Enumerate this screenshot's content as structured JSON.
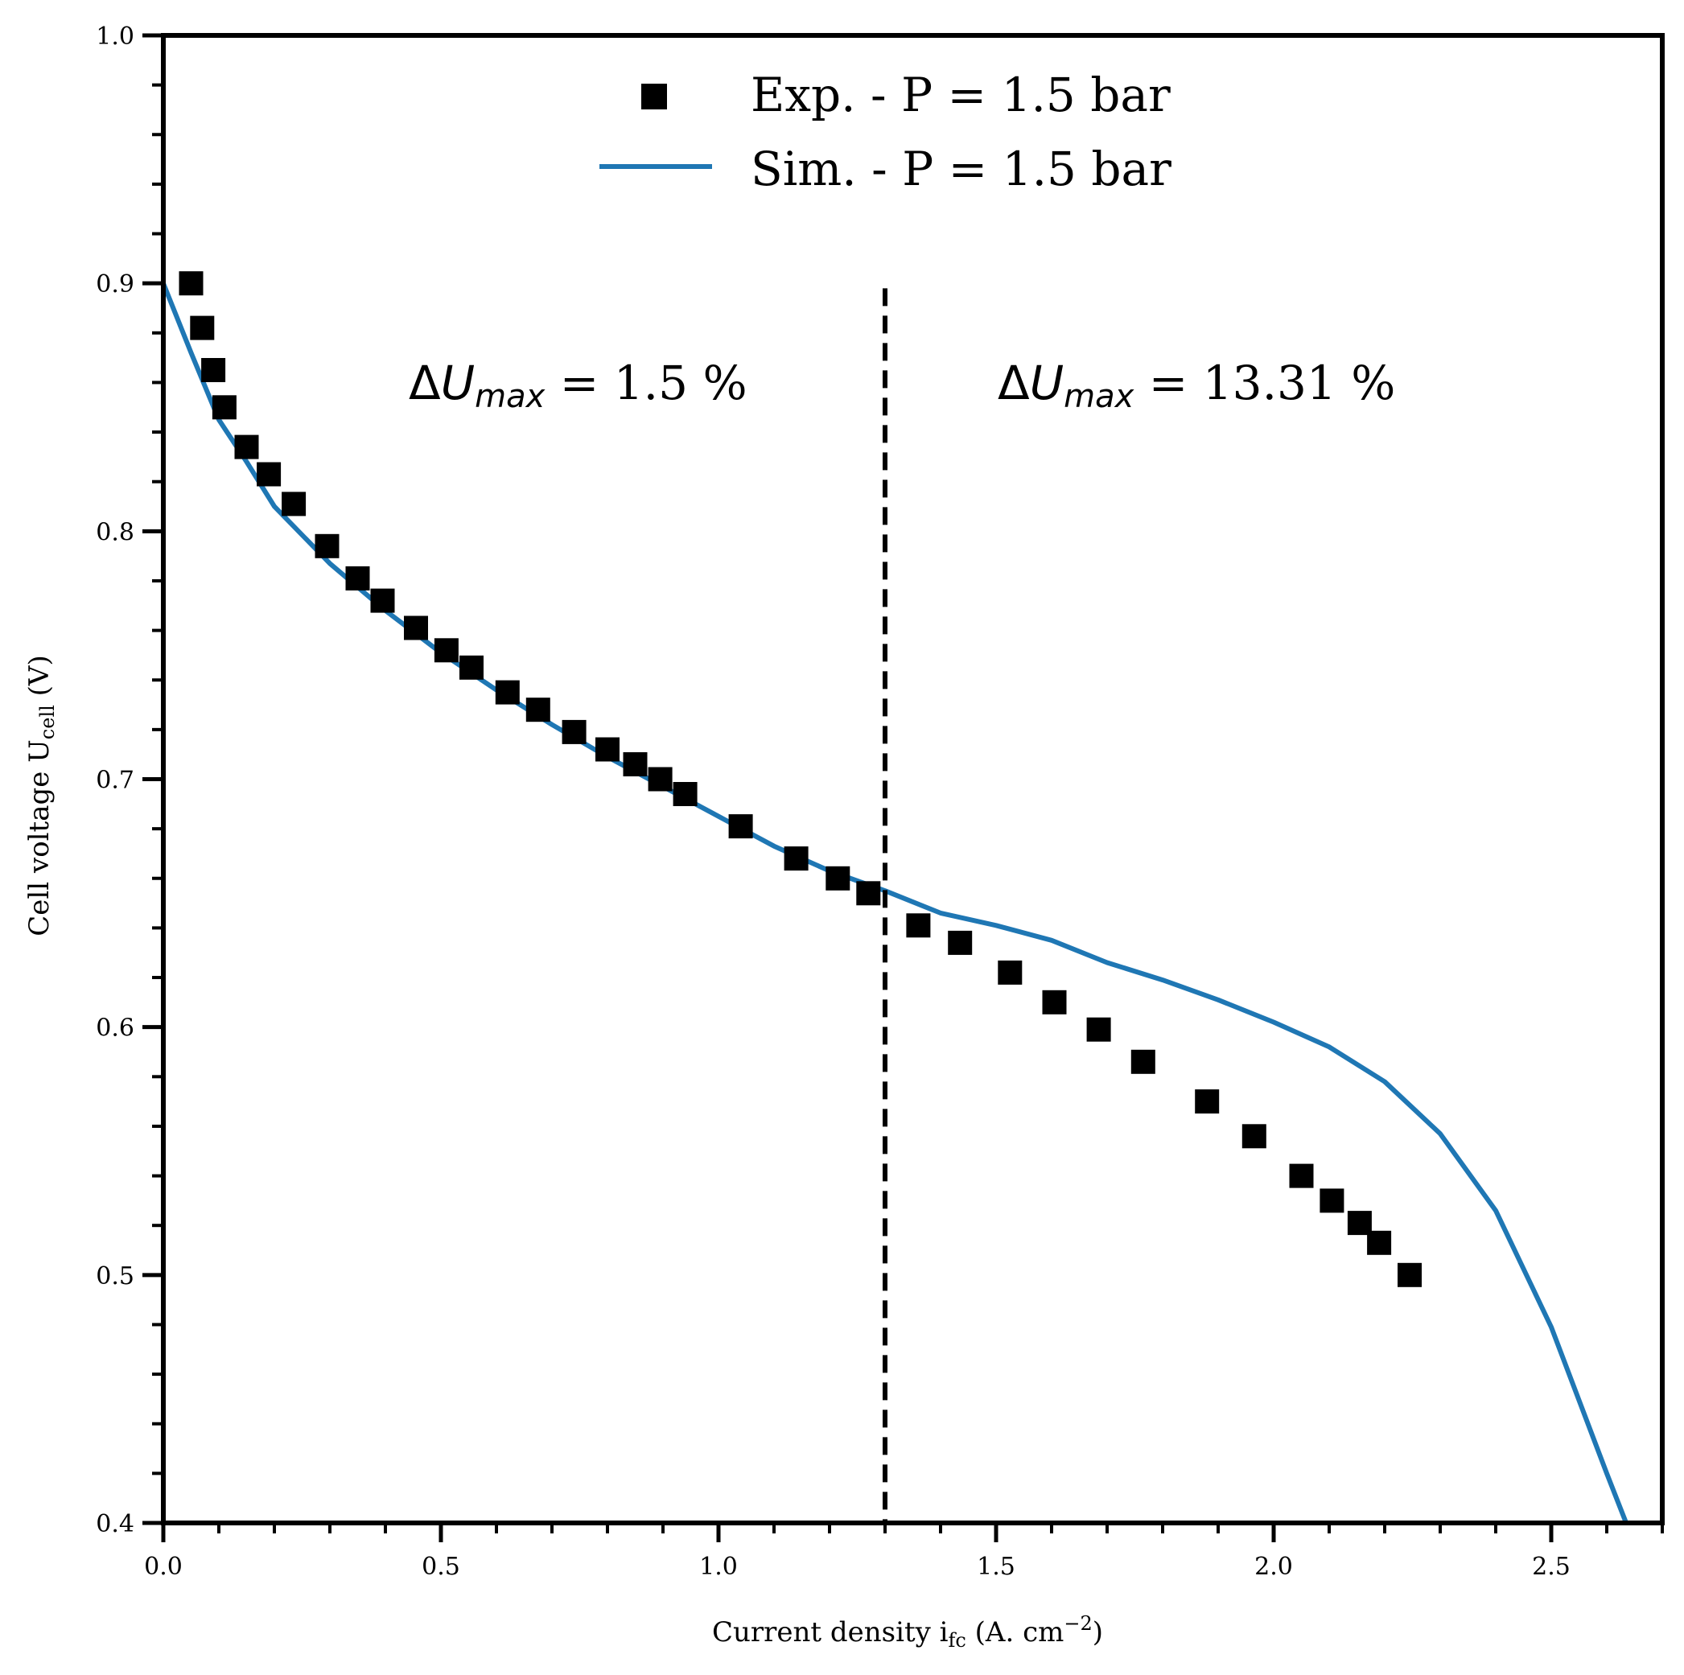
{
  "chart_data": {
    "type": "scatter+line",
    "xlabel": "Current density i",
    "xlabel_sub": "fc",
    "xlabel_units": " (A. cm",
    "xlabel_sup": "−2",
    "xlabel_close": ")",
    "ylabel": "Cell voltage U",
    "ylabel_sub": "cell",
    "ylabel_units": " (V)",
    "xlim": [
      0.0,
      2.7
    ],
    "ylim": [
      0.4,
      1.0
    ],
    "xticks": [
      0.0,
      0.5,
      1.0,
      1.5,
      2.0,
      2.5
    ],
    "xtick_labels": [
      "0.0",
      "0.5",
      "1.0",
      "1.5",
      "2.0",
      "2.5"
    ],
    "yticks": [
      0.4,
      0.5,
      0.6,
      0.7,
      0.8,
      0.9,
      1.0
    ],
    "ytick_labels": [
      "0.4",
      "0.5",
      "0.6",
      "0.7",
      "0.8",
      "0.9",
      "1.0"
    ],
    "legend_position": "top-center",
    "series": [
      {
        "name": "Exp. - P = 1.5 bar",
        "kind": "scatter",
        "marker": "square",
        "color": "#000000",
        "x": [
          0.05,
          0.07,
          0.09,
          0.11,
          0.15,
          0.19,
          0.235,
          0.295,
          0.35,
          0.395,
          0.455,
          0.51,
          0.555,
          0.62,
          0.675,
          0.74,
          0.8,
          0.85,
          0.895,
          0.94,
          1.04,
          1.14,
          1.215,
          1.27,
          1.36,
          1.435,
          1.525,
          1.605,
          1.685,
          1.765,
          1.88,
          1.965,
          2.05,
          2.105,
          2.155,
          2.19,
          2.245
        ],
        "y": [
          0.9,
          0.882,
          0.865,
          0.85,
          0.834,
          0.823,
          0.811,
          0.794,
          0.781,
          0.772,
          0.761,
          0.752,
          0.745,
          0.735,
          0.728,
          0.719,
          0.712,
          0.706,
          0.7,
          0.694,
          0.681,
          0.668,
          0.66,
          0.654,
          0.641,
          0.634,
          0.622,
          0.61,
          0.599,
          0.586,
          0.57,
          0.556,
          0.54,
          0.53,
          0.521,
          0.513,
          0.5
        ]
      },
      {
        "name": "Sim. - P = 1.5 bar",
        "kind": "line",
        "color": "#1f77b4",
        "x": [
          0.0,
          0.05,
          0.1,
          0.15,
          0.2,
          0.3,
          0.4,
          0.5,
          0.6,
          0.7,
          0.8,
          0.9,
          1.0,
          1.1,
          1.2,
          1.3,
          1.4,
          1.5,
          1.6,
          1.7,
          1.8,
          1.9,
          2.0,
          2.1,
          2.2,
          2.3,
          2.4,
          2.5,
          2.6,
          2.635
        ],
        "y": [
          0.9,
          0.872,
          0.845,
          0.828,
          0.81,
          0.787,
          0.768,
          0.751,
          0.736,
          0.722,
          0.709,
          0.697,
          0.685,
          0.673,
          0.663,
          0.655,
          0.646,
          0.641,
          0.635,
          0.626,
          0.619,
          0.611,
          0.602,
          0.592,
          0.578,
          0.557,
          0.526,
          0.479,
          0.42,
          0.4
        ]
      }
    ],
    "vline": {
      "x": 1.3,
      "y_top": 0.898,
      "style": "dashed",
      "color": "#000000"
    },
    "annotations": [
      {
        "name": "left",
        "delta": "Δ",
        "symbol": "U",
        "subscript": "max",
        "rest": " = 1.5 %"
      },
      {
        "name": "right",
        "delta": "Δ",
        "symbol": "U",
        "subscript": "max",
        "rest": " = 13.31 %"
      }
    ]
  }
}
